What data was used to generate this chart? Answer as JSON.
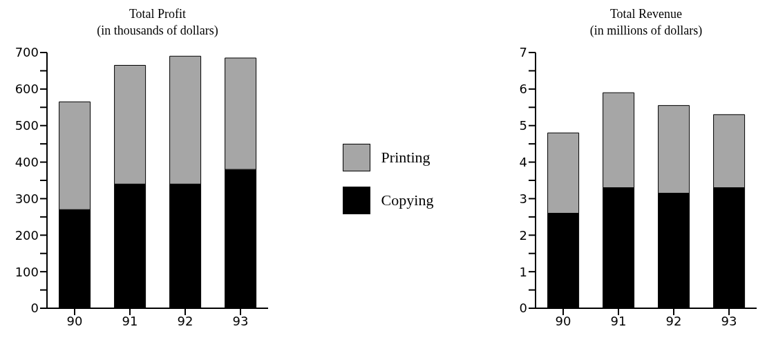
{
  "chart_data": [
    {
      "type": "bar",
      "title": "Total Profit",
      "subtitle": "(in thousands of dollars)",
      "categories": [
        "90",
        "91",
        "92",
        "93"
      ],
      "stacked": true,
      "legend": "right",
      "grid": false,
      "series": [
        {
          "name": "Copying",
          "color": "#000000",
          "values": [
            270,
            340,
            340,
            380
          ]
        },
        {
          "name": "Printing",
          "color": "#a6a6a6",
          "values": [
            295,
            325,
            350,
            305
          ]
        }
      ],
      "ylim": [
        0,
        700
      ],
      "yticks": [
        0,
        {
          "value": 50,
          "label": null
        },
        100,
        {
          "value": 150,
          "label": null
        },
        200,
        {
          "value": 250,
          "label": null
        },
        300,
        {
          "value": 350,
          "label": null
        },
        400,
        {
          "value": 450,
          "label": null
        },
        500,
        {
          "value": 550,
          "label": null
        },
        600,
        {
          "value": 650,
          "label": null
        },
        700
      ]
    },
    {
      "type": "bar",
      "title": "Total Revenue",
      "subtitle": "(in millions of dollars)",
      "categories": [
        "90",
        "91",
        "92",
        "93"
      ],
      "stacked": true,
      "grid": false,
      "series": [
        {
          "color": "#000000",
          "values": [
            2.6,
            3.3,
            3.15,
            3.3
          ]
        },
        {
          "color": "#a6a6a6",
          "values": [
            2.2,
            2.6,
            2.4,
            2.0
          ]
        }
      ],
      "ylim": [
        0,
        7
      ],
      "yticks": [
        0,
        {
          "value": 0.5,
          "label": null
        },
        1,
        {
          "value": 1.5,
          "label": null
        },
        2,
        {
          "value": 2.5,
          "label": null
        },
        3,
        {
          "value": 3.5,
          "label": null
        },
        4,
        {
          "value": 4.5,
          "label": null
        },
        5,
        {
          "value": 5.5,
          "label": null
        },
        6,
        {
          "value": 6.5,
          "label": null
        },
        7
      ]
    }
  ]
}
